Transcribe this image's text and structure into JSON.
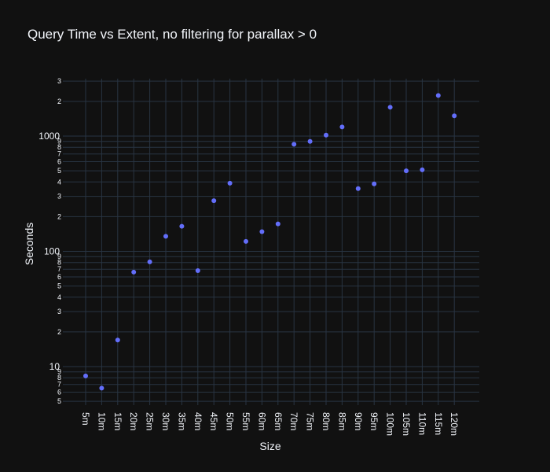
{
  "chart_data": {
    "type": "scatter",
    "title": "Query Time vs Extent, no filtering for parallax > 0",
    "xlabel": "Size",
    "ylabel": "Seconds",
    "y_scale": "log",
    "ylim": [
      4.5,
      3500
    ],
    "grid": true,
    "legend": "none",
    "colors": {
      "background": "#111111",
      "grid": "#283442",
      "point": "#636efa",
      "text": "#f2f5fa"
    },
    "categories": [
      "5m",
      "10m",
      "15m",
      "20m",
      "25m",
      "30m",
      "35m",
      "40m",
      "45m",
      "50m",
      "55m",
      "60m",
      "65m",
      "70m",
      "75m",
      "80m",
      "85m",
      "90m",
      "95m",
      "100m",
      "105m",
      "110m",
      "115m",
      "120m"
    ],
    "values": [
      8.3,
      6.5,
      17,
      66,
      81,
      135,
      165,
      68,
      275,
      390,
      122,
      148,
      173,
      850,
      900,
      1020,
      1200,
      350,
      385,
      1780,
      500,
      510,
      2250,
      1500
    ],
    "y_major_ticks": [
      {
        "value": 10,
        "label": "10"
      },
      {
        "value": 100,
        "label": "100"
      },
      {
        "value": 1000,
        "label": "1000"
      }
    ],
    "y_minor_ticks": [
      {
        "value": 5,
        "label": "5"
      },
      {
        "value": 6,
        "label": "6"
      },
      {
        "value": 7,
        "label": "7"
      },
      {
        "value": 8,
        "label": "8"
      },
      {
        "value": 9,
        "label": "9"
      },
      {
        "value": 20,
        "label": "2"
      },
      {
        "value": 30,
        "label": "3"
      },
      {
        "value": 40,
        "label": "4"
      },
      {
        "value": 50,
        "label": "5"
      },
      {
        "value": 60,
        "label": "6"
      },
      {
        "value": 70,
        "label": "7"
      },
      {
        "value": 80,
        "label": "8"
      },
      {
        "value": 90,
        "label": "9"
      },
      {
        "value": 200,
        "label": "2"
      },
      {
        "value": 300,
        "label": "3"
      },
      {
        "value": 400,
        "label": "4"
      },
      {
        "value": 500,
        "label": "5"
      },
      {
        "value": 600,
        "label": "6"
      },
      {
        "value": 700,
        "label": "7"
      },
      {
        "value": 800,
        "label": "8"
      },
      {
        "value": 900,
        "label": "9"
      },
      {
        "value": 2000,
        "label": "2"
      },
      {
        "value": 3000,
        "label": "3"
      }
    ]
  }
}
